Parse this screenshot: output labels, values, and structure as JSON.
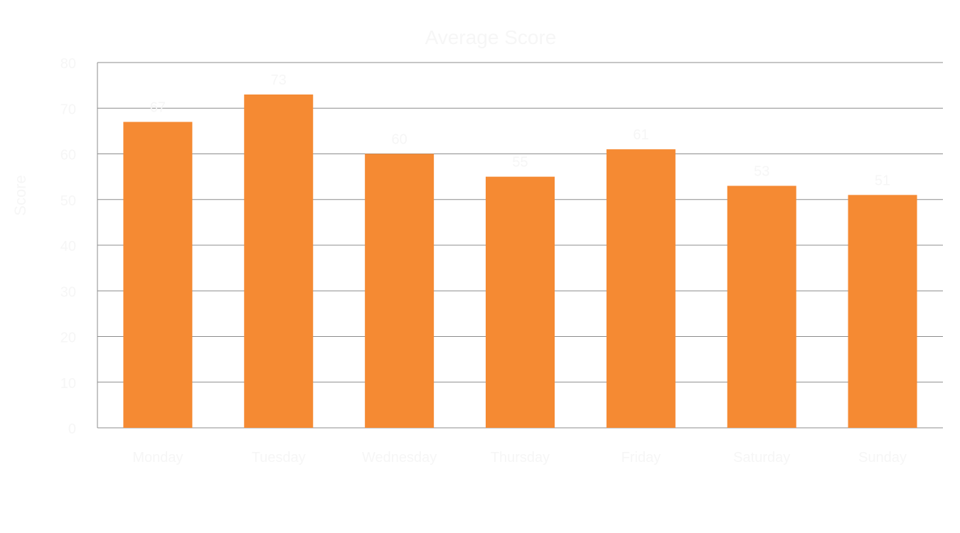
{
  "chart_data": {
    "type": "bar",
    "title": "Average Score",
    "xlabel": "",
    "ylabel": "Score",
    "categories": [
      "Monday",
      "Tuesday",
      "Wednesday",
      "Thursday",
      "Friday",
      "Saturday",
      "Sunday"
    ],
    "values": [
      67,
      73,
      60,
      55,
      61,
      53,
      51
    ],
    "data_labels": [
      "67",
      "73",
      "60",
      "55",
      "61",
      "53",
      "51"
    ],
    "ylim": [
      0,
      80
    ],
    "yticks": [
      0,
      10,
      20,
      30,
      40,
      50,
      60,
      70,
      80
    ],
    "ytick_labels": [
      "0",
      "10",
      "20",
      "30",
      "40",
      "50",
      "60",
      "70",
      "80"
    ],
    "grid": true,
    "legend": "none",
    "bar_color": "#f58a33",
    "grid_color": "#8c8c8c",
    "text_color": "#f6f6f6"
  }
}
